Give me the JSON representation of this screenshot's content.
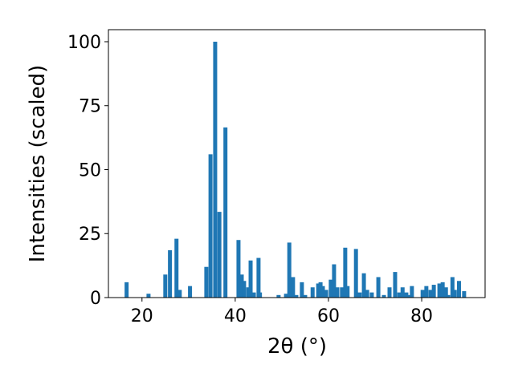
{
  "chart_data": {
    "type": "bar",
    "x_label": "2θ (°)",
    "y_label": "Intensities (scaled)",
    "color": "#1f77b4",
    "x": [
      16.7,
      21.4,
      25.0,
      26.0,
      27.4,
      28.1,
      30.3,
      33.8,
      34.7,
      35.7,
      36.6,
      37.9,
      40.7,
      41.4,
      41.9,
      42.8,
      43.3,
      44.0,
      45.0,
      45.3,
      49.3,
      50.9,
      51.6,
      52.4,
      53.1,
      54.3,
      55.0,
      56.6,
      57.8,
      58.3,
      58.8,
      59.5,
      60.5,
      61.2,
      61.9,
      62.9,
      63.6,
      64.1,
      65.9,
      66.7,
      67.6,
      68.3,
      69.3,
      70.7,
      71.9,
      73.1,
      74.3,
      75.2,
      75.9,
      76.7,
      77.4,
      77.9,
      80.2,
      81.0,
      81.9,
      82.6,
      83.8,
      84.5,
      85.2,
      85.7,
      86.6,
      87.1,
      88.0,
      89.1
    ],
    "values": [
      6,
      1.5,
      9,
      18.5,
      23,
      3,
      4.5,
      12,
      56,
      100,
      33.5,
      66.5,
      22.5,
      9,
      6.5,
      4,
      14.5,
      2,
      15.5,
      2,
      1,
      1.5,
      21.5,
      8,
      1,
      6,
      1,
      4,
      5.5,
      6,
      4.5,
      3,
      7,
      13,
      4,
      4,
      19.5,
      4.5,
      19,
      2,
      9.5,
      3,
      2,
      8,
      1,
      4,
      10,
      2,
      4,
      2,
      1,
      4.5,
      3,
      4.5,
      3,
      5,
      5.5,
      6,
      4,
      1,
      8,
      3,
      6.5,
      2.5
    ],
    "xlim": [
      12.8,
      93.6
    ],
    "ylim": [
      0,
      104.7
    ],
    "xticks": [
      20,
      40,
      60,
      80
    ],
    "yticks": [
      0,
      25,
      50,
      75,
      100
    ]
  }
}
